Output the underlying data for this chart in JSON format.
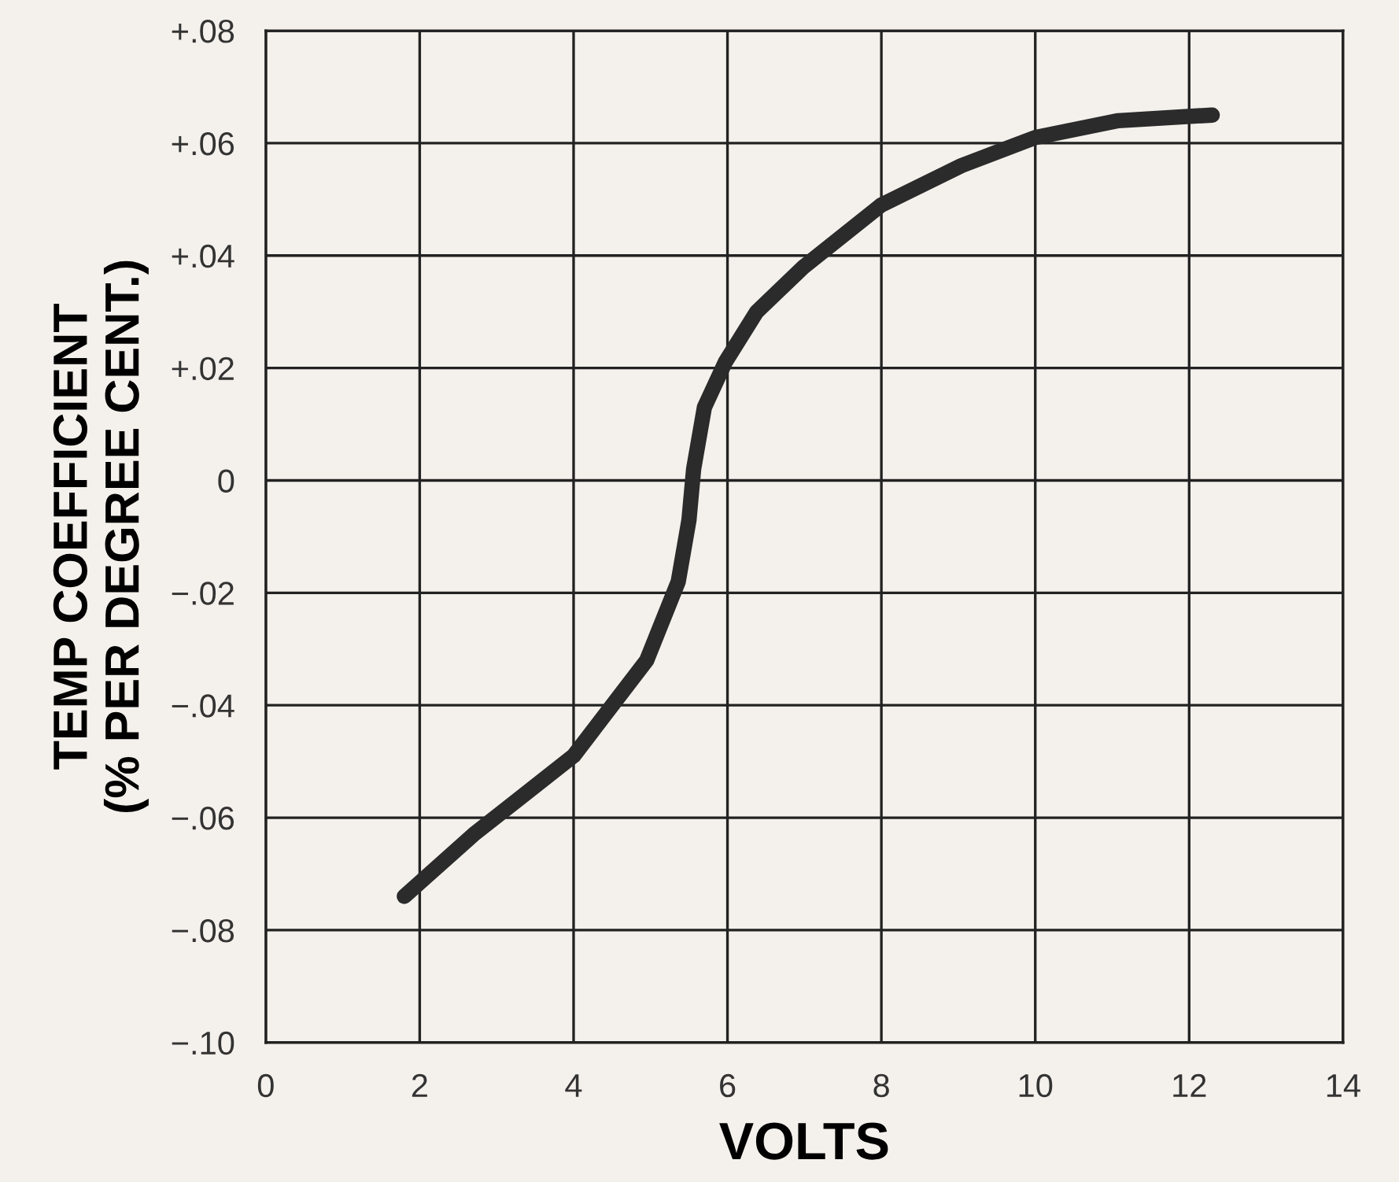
{
  "chart_data": {
    "type": "line",
    "xlabel": "VOLTS",
    "ylabel": "TEMP COEFFICIENT\n(% PER DEGREE CENT.)",
    "x": [
      1.8,
      2.7,
      4.0,
      4.95,
      5.36,
      5.5,
      5.56,
      5.7,
      5.97,
      6.38,
      6.99,
      8.0,
      9.04,
      10.0,
      11.08,
      12.3
    ],
    "series": [
      {
        "color": "#2b2b2b",
        "values": [
          -0.074,
          -0.063,
          -0.049,
          -0.032,
          -0.018,
          -0.007,
          0.002,
          0.013,
          0.021,
          0.03,
          0.038,
          0.049,
          0.056,
          0.061,
          0.064,
          0.065
        ]
      }
    ],
    "xlim": [
      0,
      14
    ],
    "xticks": [
      0,
      2,
      4,
      6,
      8,
      10,
      12,
      14
    ],
    "ylim": [
      -0.1,
      0.08
    ],
    "yticks": [
      {
        "value": -0.1,
        "label": "−.10"
      },
      {
        "value": -0.08,
        "label": "−.08"
      },
      {
        "value": -0.06,
        "label": "−.06"
      },
      {
        "value": -0.04,
        "label": "−.04"
      },
      {
        "value": -0.02,
        "label": "−.02"
      },
      {
        "value": 0,
        "label": "0"
      },
      {
        "value": 0.02,
        "label": "+.02"
      },
      {
        "value": 0.04,
        "label": "+.04"
      },
      {
        "value": 0.06,
        "label": "+.06"
      },
      {
        "value": 0.08,
        "label": "+.08"
      }
    ],
    "grid": true,
    "marker": "none",
    "line_style": "solid",
    "legend": false
  }
}
